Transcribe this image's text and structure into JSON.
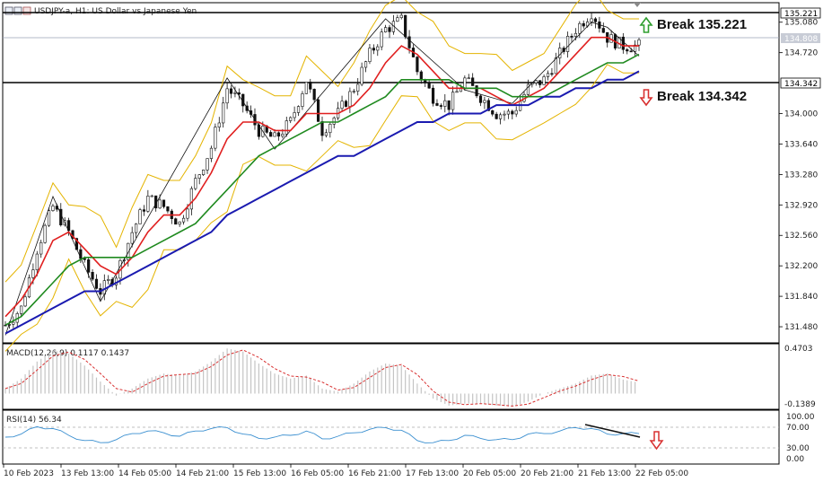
{
  "window": {
    "title": "USDJPY-a, H1:  US Dollar vs Japanese Yen"
  },
  "annotations": {
    "break_up": "Break 135.221",
    "break_down": "Break 134.342",
    "up_arrow_color": "#2e9e2e",
    "down_arrow_color": "#d83030"
  },
  "price_axis": {
    "ticks": [
      "135.080",
      "134.720",
      "134.000",
      "133.640",
      "133.280",
      "132.920",
      "132.560",
      "132.200",
      "131.840",
      "131.480"
    ],
    "highlight_top": "135.221",
    "highlight_current": "134.808",
    "highlight_support": "134.342"
  },
  "time_axis": {
    "labels": [
      "10 Feb 2023",
      "13 Feb 13:00",
      "14 Feb 05:00",
      "14 Feb 21:00",
      "15 Feb 13:00",
      "16 Feb 05:00",
      "16 Feb 21:00",
      "17 Feb 13:00",
      "20 Feb 05:00",
      "20 Feb 21:00",
      "21 Feb 13:00",
      "22 Feb 05:00"
    ]
  },
  "macd": {
    "label": "MACD(12,26,9) 0.1117 0.1437",
    "ticks": [
      "0.4703",
      "-0.1389"
    ]
  },
  "rsi": {
    "label": "RSI(14) 56.34",
    "ticks": [
      "100.00",
      "70.00",
      "30.00",
      "0.00"
    ]
  },
  "chart_data": {
    "type": "line",
    "symbol": "USDJPY-a",
    "timeframe": "H1",
    "ylim": [
      131.3,
      135.3
    ],
    "levels": {
      "resistance": 135.221,
      "support": 134.342,
      "current": 134.808
    },
    "series": [
      {
        "values": [
          131.5,
          131.7,
          132.4,
          132.9,
          132.6,
          132.2,
          131.9,
          132.1,
          132.6,
          133.0,
          132.9,
          132.7,
          133.2,
          133.6,
          134.3,
          134.1,
          133.8,
          133.7,
          133.9,
          134.4,
          133.8,
          134.0,
          134.3,
          134.7,
          135.0,
          135.1,
          134.5,
          134.2,
          134.1,
          134.4,
          134.2,
          134.0,
          134.0,
          134.3,
          134.4,
          134.7,
          135.0,
          135.2,
          134.9,
          134.8,
          134.8
        ]
      },
      {
        "values": [
          131.6,
          131.8,
          132.1,
          132.5,
          132.6,
          132.4,
          132.2,
          132.1,
          132.3,
          132.6,
          132.8,
          132.8,
          133.0,
          133.3,
          133.7,
          133.9,
          133.9,
          133.8,
          133.8,
          134.0,
          134.0,
          134.0,
          134.1,
          134.3,
          134.6,
          134.8,
          134.7,
          134.5,
          134.3,
          134.3,
          134.3,
          134.2,
          134.1,
          134.2,
          134.3,
          134.5,
          134.7,
          134.9,
          134.9,
          134.8,
          134.8
        ]
      },
      {
        "values": [
          131.5,
          131.6,
          131.8,
          132.0,
          132.2,
          132.3,
          132.3,
          132.3,
          132.3,
          132.4,
          132.5,
          132.6,
          132.7,
          132.9,
          133.1,
          133.3,
          133.5,
          133.6,
          133.7,
          133.8,
          133.9,
          133.9,
          134.0,
          134.1,
          134.2,
          134.4,
          134.4,
          134.4,
          134.4,
          134.3,
          134.3,
          134.3,
          134.2,
          134.2,
          134.2,
          134.3,
          134.4,
          134.5,
          134.6,
          134.6,
          134.7
        ]
      },
      {
        "values": [
          131.4,
          131.5,
          131.6,
          131.7,
          131.8,
          131.9,
          131.9,
          132.0,
          132.1,
          132.2,
          132.3,
          132.4,
          132.5,
          132.6,
          132.8,
          132.9,
          133.0,
          133.1,
          133.2,
          133.3,
          133.4,
          133.5,
          133.5,
          133.6,
          133.7,
          133.8,
          133.9,
          133.9,
          134.0,
          134.0,
          134.0,
          134.1,
          134.1,
          134.1,
          134.2,
          134.2,
          134.3,
          134.3,
          134.4,
          134.4,
          134.5
        ]
      }
    ],
    "macd_hist": [
      0.05,
      0.15,
      0.32,
      0.43,
      0.4,
      0.28,
      0.12,
      -0.02,
      0.05,
      0.15,
      0.2,
      0.18,
      0.22,
      0.32,
      0.45,
      0.42,
      0.3,
      0.2,
      0.15,
      0.18,
      0.05,
      0.02,
      0.1,
      0.22,
      0.3,
      0.28,
      0.1,
      -0.05,
      -0.12,
      -0.1,
      -0.1,
      -0.12,
      -0.13,
      -0.08,
      0.0,
      0.05,
      0.1,
      0.18,
      0.2,
      0.14,
      0.11
    ],
    "rsi_values": [
      48,
      55,
      72,
      68,
      52,
      40,
      35,
      42,
      56,
      62,
      58,
      50,
      62,
      68,
      70,
      55,
      45,
      48,
      52,
      62,
      44,
      50,
      58,
      66,
      70,
      64,
      40,
      35,
      40,
      52,
      45,
      42,
      42,
      55,
      56,
      62,
      70,
      68,
      55,
      56,
      56
    ]
  }
}
